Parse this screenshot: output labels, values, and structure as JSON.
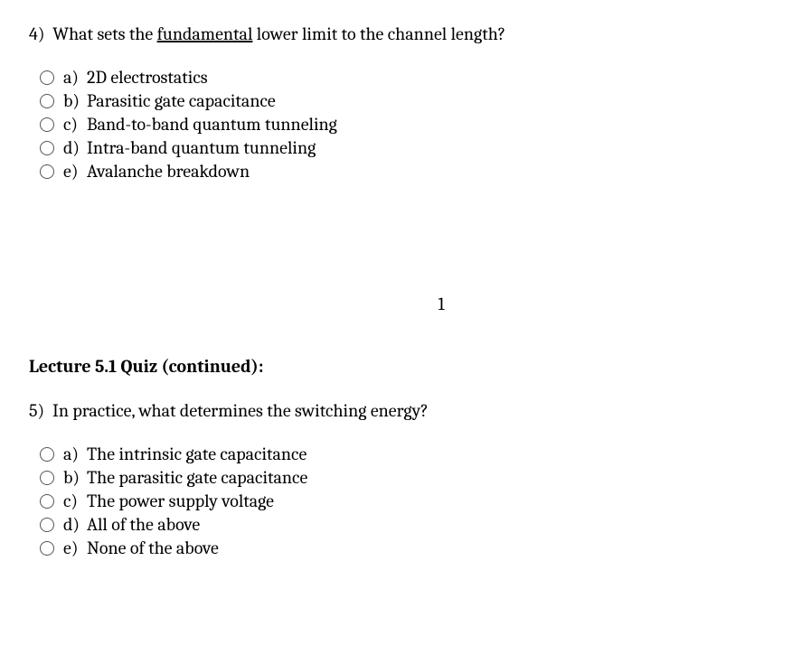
{
  "question4": {
    "number": "4)",
    "text_before": "What sets the ",
    "underlined_word": "fundamental",
    "text_after": " lower limit to the channel length?",
    "options": [
      {
        "letter": "a)",
        "text": "2D electrostatics"
      },
      {
        "letter": "b)",
        "text": "Parasitic gate capacitance"
      },
      {
        "letter": "c)",
        "text": "Band-to-band quantum tunneling"
      },
      {
        "letter": "d)",
        "text": "Intra-band quantum tunneling"
      },
      {
        "letter": "e)",
        "text": "Avalanche breakdown"
      }
    ]
  },
  "page_number": "1",
  "section_title": "Lecture 5.1 Quiz (continued):",
  "question5": {
    "number": "5)",
    "text": "In practice, what determines the switching energy?",
    "options": [
      {
        "letter": "a)",
        "text": "The intrinsic gate capacitance"
      },
      {
        "letter": "b)",
        "text": "The parasitic gate capacitance"
      },
      {
        "letter": "c)",
        "text": "The power supply voltage"
      },
      {
        "letter": "d)",
        "text": "All of the above"
      },
      {
        "letter": "e)",
        "text": "None of the above"
      }
    ]
  }
}
